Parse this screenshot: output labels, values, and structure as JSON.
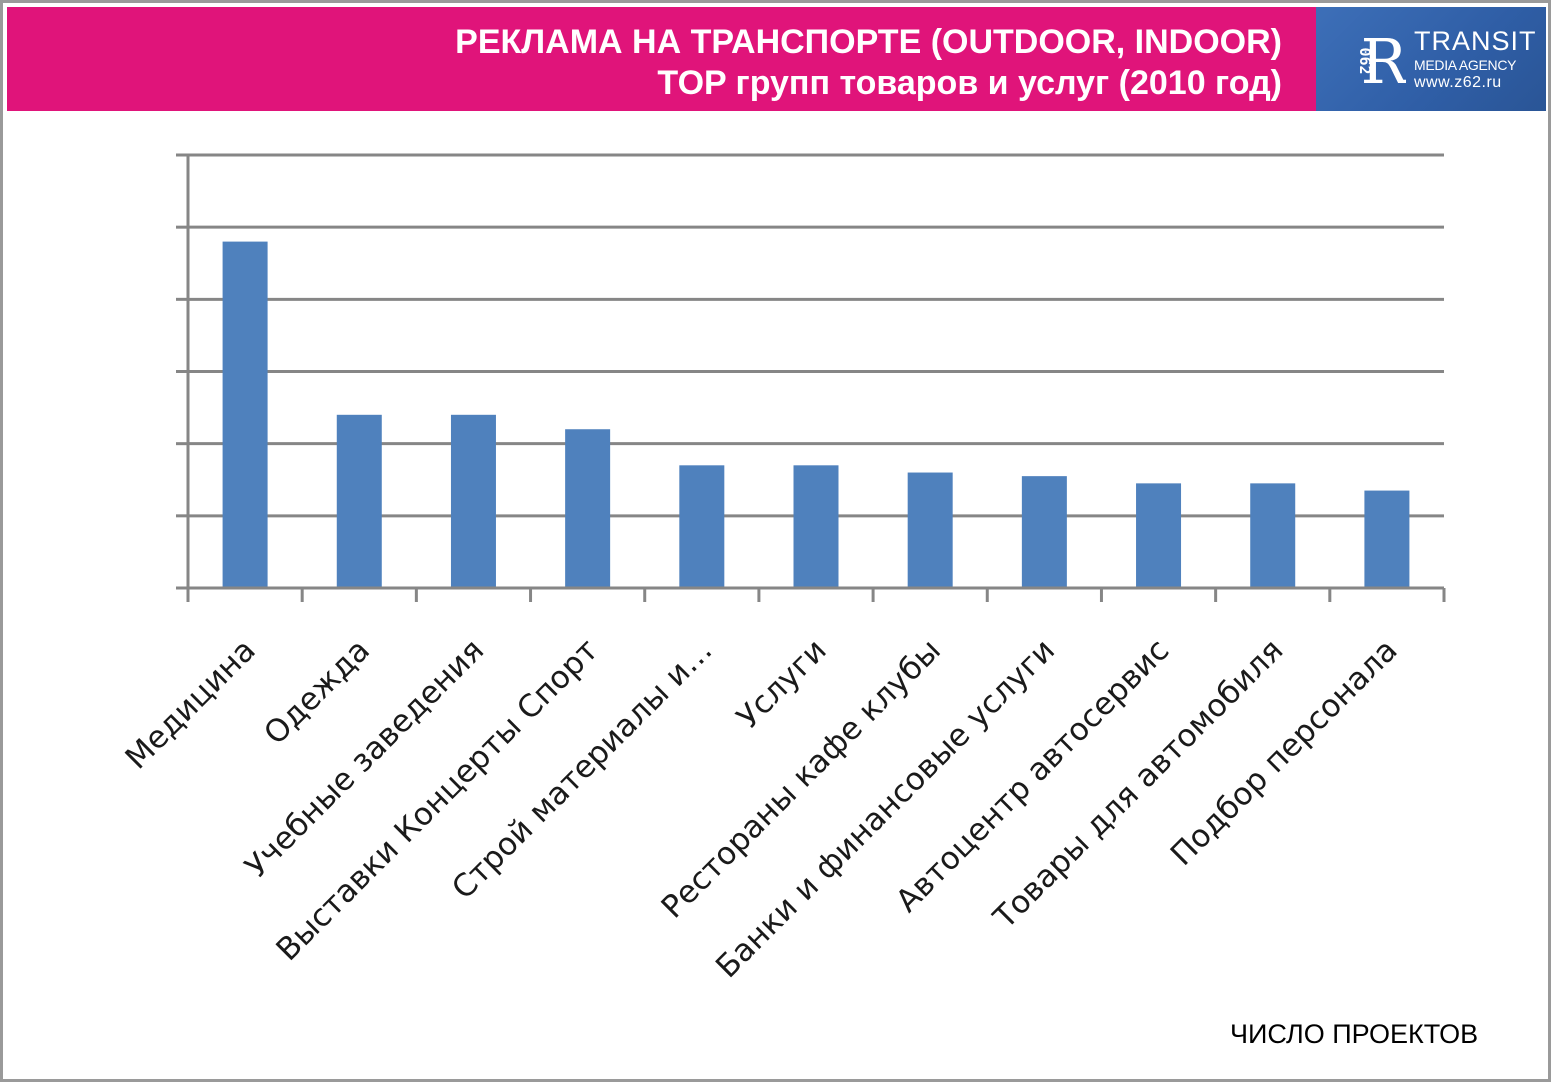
{
  "header": {
    "title_line1": "РЕКЛАМА НА ТРАНСПОРТЕ (OUTDOOR, INDOOR)",
    "title_line2": "TOP групп товаров и услуг (2010 год)"
  },
  "logo": {
    "name": "TRANSIT",
    "subtitle": "MEDIA AGENCY",
    "url": "www.z62.ru",
    "mark_digits": "062",
    "mark_letter": "R"
  },
  "colors": {
    "header_bg": "#e0147a",
    "logo_bg": "#2f5ea6",
    "bar": "#4f81bd",
    "grid": "#868686"
  },
  "chart_data": {
    "type": "bar",
    "categories": [
      "Медицина",
      "Одежда",
      "Учебные заведения",
      "Выставки Концерты Спорт",
      "Строй материалы и…",
      "Услуги",
      "Рестораны кафе клубы",
      "Банки и финансовые услуги",
      "Автоцентр автосервис",
      "Товары для автомобиля",
      "Подбор персонала"
    ],
    "values": [
      4.8,
      2.4,
      2.4,
      2.2,
      1.7,
      1.7,
      1.6,
      1.55,
      1.45,
      1.45,
      1.35
    ],
    "ylim": [
      0,
      6
    ],
    "gridlines": true,
    "ytick_labels_visible": false,
    "legend": "none",
    "units_label": "ЧИСЛО ПРОЕКТОВ"
  }
}
